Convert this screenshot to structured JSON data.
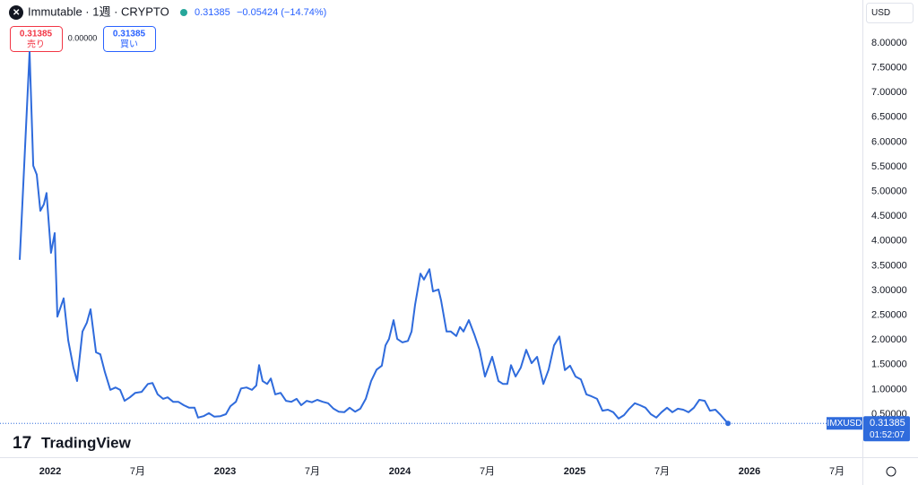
{
  "chart_data": {
    "type": "line",
    "title": "Immutable · 1週 · CRYPTO",
    "quote": {
      "price": "0.31385",
      "change": "−0.05424 (−14.74%)"
    },
    "order_panel": {
      "sell_price": "0.31385",
      "sell_label": "売り",
      "spread": "0.00000",
      "buy_price": "0.31385",
      "buy_label": "買い"
    },
    "currency": "USD",
    "symbol": "IMXUSD",
    "price_label": "0.31385",
    "countdown": "01:52:07",
    "logo": "TradingView",
    "color": "#2f6bdc",
    "grid": false,
    "xlim": [
      2021.713,
      2026.646
    ],
    "ylim": [
      -0.37,
      8.87
    ],
    "xticks": [
      2022,
      {
        "value": 2022.5,
        "label": "7月"
      },
      2023,
      {
        "value": 2023.5,
        "label": "7月"
      },
      2024,
      {
        "value": 2024.5,
        "label": "7月"
      },
      2025,
      {
        "value": 2025.5,
        "label": "7月"
      },
      2026,
      {
        "value": 2026.5,
        "label": "7月"
      }
    ],
    "yticks": [
      {
        "value": 0.5,
        "label": "0.50000"
      },
      {
        "value": 1,
        "label": "1.00000"
      },
      {
        "value": 1.5,
        "label": "1.50000"
      },
      {
        "value": 2,
        "label": "2.00000"
      },
      {
        "value": 2.5,
        "label": "2.50000"
      },
      {
        "value": 3,
        "label": "3.00000"
      },
      {
        "value": 3.5,
        "label": "3.50000"
      },
      {
        "value": 4,
        "label": "4.00000"
      },
      {
        "value": 4.5,
        "label": "4.50000"
      },
      {
        "value": 5,
        "label": "5.00000"
      },
      {
        "value": 5.5,
        "label": "5.50000"
      },
      {
        "value": 6,
        "label": "6.00000"
      },
      {
        "value": 6.5,
        "label": "6.50000"
      },
      {
        "value": 7,
        "label": "7.00000"
      },
      {
        "value": 7.5,
        "label": "7.50000"
      },
      {
        "value": 8,
        "label": "8.00000"
      }
    ],
    "x": [
      2021.826,
      2021.882,
      2021.903,
      2021.923,
      2021.944,
      2021.964,
      2021.979,
      2022.005,
      2022.026,
      2022.041,
      2022.077,
      2022.103,
      2022.133,
      2022.154,
      2022.185,
      2022.21,
      2022.231,
      2022.262,
      2022.287,
      2022.313,
      2022.344,
      2022.374,
      2022.4,
      2022.426,
      2022.456,
      2022.487,
      2022.523,
      2022.559,
      2022.585,
      2022.615,
      2022.646,
      2022.672,
      2022.703,
      2022.733,
      2022.764,
      2022.795,
      2022.826,
      2022.846,
      2022.877,
      2022.908,
      2022.938,
      2022.974,
      2023.005,
      2023.031,
      2023.062,
      2023.092,
      2023.123,
      2023.154,
      2023.179,
      2023.195,
      2023.215,
      2023.241,
      2023.262,
      2023.287,
      2023.318,
      2023.349,
      2023.379,
      2023.41,
      2023.436,
      2023.467,
      2023.497,
      2023.528,
      2023.559,
      2023.59,
      2023.621,
      2023.651,
      2023.682,
      2023.713,
      2023.744,
      2023.774,
      2023.805,
      2023.836,
      2023.867,
      2023.897,
      2023.918,
      2023.938,
      2023.964,
      2023.985,
      2024.015,
      2024.046,
      2024.067,
      2024.087,
      2024.118,
      2024.138,
      2024.169,
      2024.19,
      2024.221,
      2024.236,
      2024.267,
      2024.292,
      2024.323,
      2024.344,
      2024.364,
      2024.395,
      2024.426,
      2024.456,
      2024.487,
      2024.528,
      2024.564,
      2024.59,
      2024.615,
      2024.636,
      2024.662,
      2024.692,
      2024.723,
      2024.754,
      2024.785,
      2024.821,
      2024.851,
      2024.882,
      2024.913,
      2024.944,
      2024.974,
      2025.005,
      2025.036,
      2025.067,
      2025.097,
      2025.128,
      2025.159,
      2025.19,
      2025.221,
      2025.251,
      2025.282,
      2025.313,
      2025.344,
      2025.374,
      2025.405,
      2025.436,
      2025.467,
      2025.497,
      2025.528,
      2025.559,
      2025.59,
      2025.621,
      2025.651,
      2025.682,
      2025.713,
      2025.744,
      2025.774,
      2025.805,
      2025.836,
      2025.877
    ],
    "values": [
      3.62,
      7.82,
      5.52,
      5.34,
      4.61,
      4.74,
      4.97,
      3.76,
      4.16,
      2.47,
      2.84,
      1.99,
      1.44,
      1.17,
      2.17,
      2.35,
      2.62,
      1.75,
      1.71,
      1.35,
      0.99,
      1.04,
      0.99,
      0.77,
      0.84,
      0.93,
      0.95,
      1.11,
      1.13,
      0.9,
      0.81,
      0.84,
      0.75,
      0.75,
      0.68,
      0.63,
      0.63,
      0.43,
      0.46,
      0.52,
      0.45,
      0.46,
      0.5,
      0.66,
      0.75,
      1.02,
      1.04,
      0.99,
      1.08,
      1.49,
      1.17,
      1.11,
      1.22,
      0.9,
      0.93,
      0.77,
      0.75,
      0.81,
      0.68,
      0.77,
      0.74,
      0.79,
      0.75,
      0.72,
      0.61,
      0.55,
      0.54,
      0.63,
      0.55,
      0.61,
      0.81,
      1.17,
      1.4,
      1.48,
      1.89,
      2.02,
      2.4,
      2.02,
      1.95,
      1.98,
      2.17,
      2.71,
      3.34,
      3.22,
      3.43,
      2.98,
      3.02,
      2.8,
      2.17,
      2.17,
      2.08,
      2.26,
      2.17,
      2.4,
      2.11,
      1.8,
      1.26,
      1.66,
      1.17,
      1.11,
      1.11,
      1.49,
      1.26,
      1.44,
      1.8,
      1.53,
      1.66,
      1.11,
      1.4,
      1.89,
      2.07,
      1.39,
      1.48,
      1.26,
      1.2,
      0.9,
      0.86,
      0.81,
      0.57,
      0.59,
      0.54,
      0.41,
      0.48,
      0.61,
      0.72,
      0.68,
      0.63,
      0.5,
      0.43,
      0.54,
      0.63,
      0.54,
      0.61,
      0.59,
      0.54,
      0.63,
      0.79,
      0.77,
      0.57,
      0.59,
      0.48,
      0.31385
    ]
  }
}
